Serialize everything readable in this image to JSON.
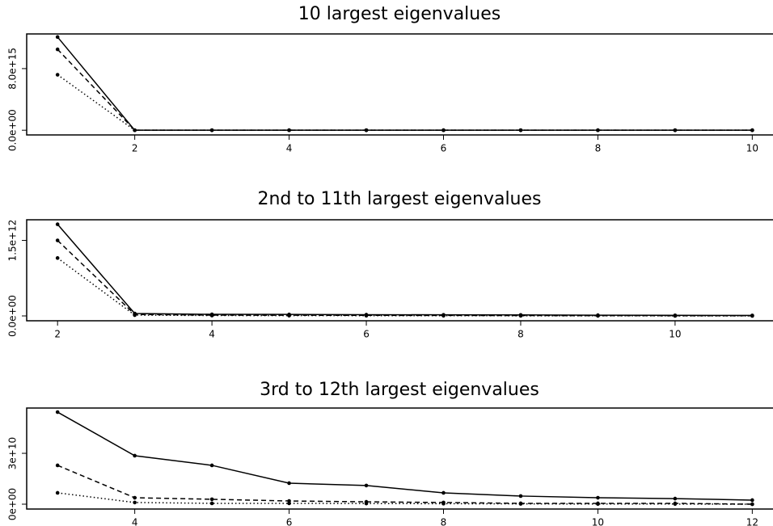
{
  "chart_data": [
    {
      "type": "line",
      "title": "10 largest eigenvalues",
      "x": [
        1,
        2,
        3,
        4,
        5,
        6,
        7,
        8,
        9,
        10
      ],
      "xlim": [
        0.6,
        10.3
      ],
      "xticks": [
        2,
        4,
        6,
        8,
        10
      ],
      "ylim": [
        -400000000000000.0,
        1.25e+16
      ],
      "yticks": [
        {
          "value": 0,
          "label": "0.0e+00"
        },
        {
          "value": 8000000000000000.0,
          "label": "8.0e+15"
        }
      ],
      "series": [
        {
          "color": "#000000",
          "dash": "solid",
          "values": [
            1.21e+16,
            0,
            0,
            0,
            0,
            0,
            0,
            0,
            0,
            0
          ]
        },
        {
          "color": "#000000",
          "dash": "dashed",
          "values": [
            1.05e+16,
            0,
            0,
            0,
            0,
            0,
            0,
            0,
            0,
            0
          ]
        },
        {
          "color": "#000000",
          "dash": "dotted",
          "values": [
            7200000000000000.0,
            0,
            0,
            0,
            0,
            0,
            0,
            0,
            0,
            0
          ]
        }
      ]
    },
    {
      "type": "line",
      "title": "2nd to 11th largest eigenvalues",
      "x": [
        2,
        3,
        4,
        5,
        6,
        7,
        8,
        9,
        10,
        11
      ],
      "xlim": [
        1.6,
        11.3
      ],
      "xticks": [
        2,
        4,
        6,
        8,
        10
      ],
      "ylim": [
        -64000000000.0,
        1910000000000.0
      ],
      "yticks": [
        {
          "value": 0,
          "label": "0.0e+00"
        },
        {
          "value": 1500000000000.0,
          "label": "1.5e+12"
        }
      ],
      "series": [
        {
          "color": "#000000",
          "dash": "solid",
          "values": [
            1820000000000.0,
            48000000000.0,
            32000000000.0,
            30000000000.0,
            25000000000.0,
            22000000000.0,
            20000000000.0,
            15000000000.0,
            12000000000.0,
            10000000000.0
          ]
        },
        {
          "color": "#000000",
          "dash": "dashed",
          "values": [
            1500000000000.0,
            30000000000.0,
            16000000000.0,
            14000000000.0,
            12000000000.0,
            10000000000.0,
            8000000000.0,
            6000000000.0,
            5000000000.0,
            4000000000.0
          ]
        },
        {
          "color": "#000000",
          "dash": "dotted",
          "values": [
            1150000000000.0,
            16000000000.0,
            8000000000.0,
            6000000000.0,
            5000000000.0,
            4000000000.0,
            3000000000.0,
            2000000000.0,
            1000000000.0,
            0
          ]
        }
      ]
    },
    {
      "type": "line",
      "title": "3rd to 12th largest eigenvalues",
      "x": [
        3,
        4,
        5,
        6,
        7,
        8,
        9,
        10,
        11,
        12
      ],
      "xlim": [
        2.6,
        12.3
      ],
      "xticks": [
        4,
        6,
        8,
        10,
        12
      ],
      "ylim": [
        -1900000000.0,
        56700000000.0
      ],
      "yticks": [
        {
          "value": 0,
          "label": "0e+00"
        },
        {
          "value": 30000000000.0,
          "label": "3e+10"
        }
      ],
      "series": [
        {
          "color": "#000000",
          "dash": "solid",
          "values": [
            54300000000.0,
            28600000000.0,
            22900000000.0,
            12400000000.0,
            11000000000.0,
            6700000000.0,
            4800000000.0,
            3800000000.0,
            3300000000.0,
            2400000000.0
          ]
        },
        {
          "color": "#000000",
          "dash": "dashed",
          "values": [
            22900000000.0,
            3800000000.0,
            2900000000.0,
            1900000000.0,
            1400000000.0,
            1000000000.0,
            500000000.0,
            500000000.0,
            500000000.0,
            0
          ]
        },
        {
          "color": "#000000",
          "dash": "dotted",
          "values": [
            6700000000.0,
            1000000000.0,
            500000000.0,
            500000000.0,
            400000000.0,
            300000000.0,
            200000000.0,
            100000000.0,
            100000000.0,
            0
          ]
        }
      ]
    }
  ]
}
